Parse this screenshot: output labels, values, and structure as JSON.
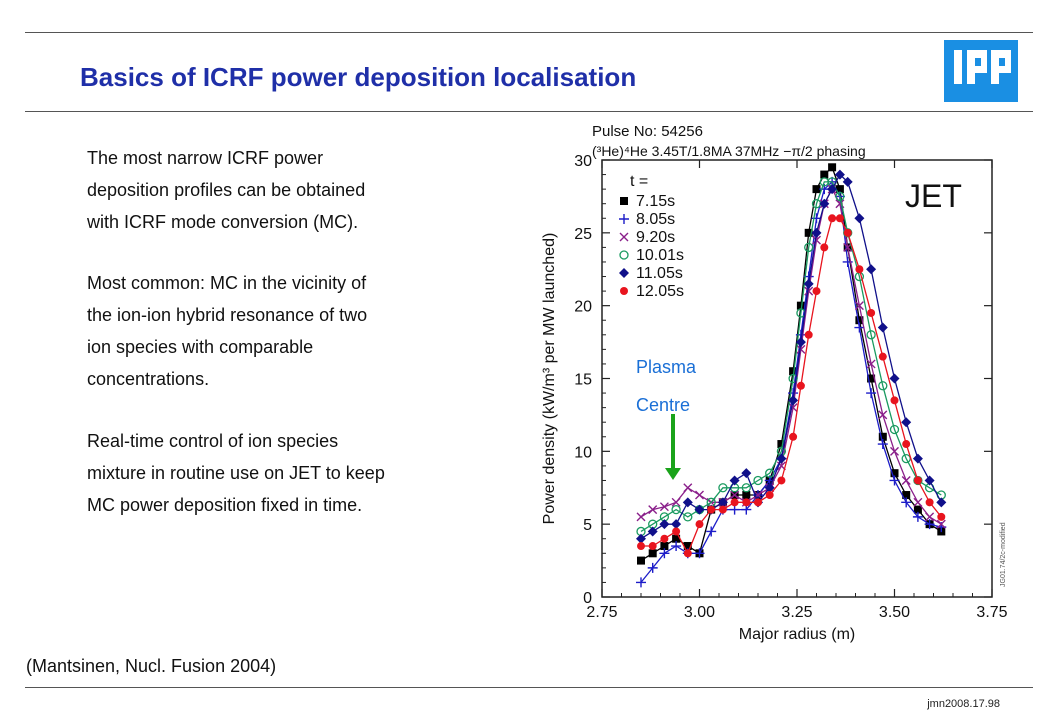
{
  "slide": {
    "title": "Basics of ICRF power deposition localisation",
    "title_color": "#1f2fa8",
    "logo_text": "IPP",
    "logo_color": "#1a8fe3",
    "paragraphs": [
      [
        "The most narrow ICRF power",
        "deposition profiles can be obtained",
        "with ICRF mode conversion (MC)."
      ],
      [
        "Most common: MC in the vicinity of",
        "the ion-ion hybrid resonance of two",
        "ion species with comparable",
        "concentrations."
      ],
      [
        "Real-time control of ion species",
        "mixture in routine use on JET to keep",
        "MC power deposition fixed in time."
      ]
    ],
    "citation": "(Mantsinen, Nucl. Fusion 2004)",
    "slide_id": "jmn2008.17.98"
  },
  "annotation": {
    "line1": "Plasma",
    "line2": "Centre",
    "arrow_color": "#1aa31a",
    "text_color": "#1a6fd6"
  },
  "chart_data": {
    "type": "scatter",
    "header_line1": "Pulse No: 54256",
    "header_line2": "(³He)⁴He 3.45T/1.8MA     37MHz   −π/2 phasing",
    "corner_label": "JET",
    "xlabel": "Major radius (m)",
    "ylabel": "Power density (kW/m³ per MW launched)",
    "xlim": [
      2.75,
      3.75
    ],
    "ylim": [
      0,
      30
    ],
    "xticks": [
      "2.75",
      "3.00",
      "3.25",
      "3.50",
      "3.75"
    ],
    "yticks": [
      "0",
      "5",
      "10",
      "15",
      "20",
      "25",
      "30"
    ],
    "legend_title": "t =",
    "legend_position": "top-left",
    "side_note": "JG01.74/2c-modified",
    "series": [
      {
        "name": "7.15s",
        "marker": "square",
        "color": "#000000",
        "x": [
          2.85,
          2.88,
          2.91,
          2.94,
          2.97,
          3.0,
          3.03,
          3.06,
          3.09,
          3.12,
          3.15,
          3.18,
          3.21,
          3.24,
          3.26,
          3.28,
          3.3,
          3.32,
          3.34,
          3.36,
          3.38,
          3.41,
          3.44,
          3.47,
          3.5,
          3.53,
          3.56,
          3.59,
          3.62
        ],
        "y": [
          2.5,
          3.0,
          3.5,
          4.0,
          3.5,
          3.0,
          6.0,
          6.5,
          7.0,
          7.0,
          7.0,
          8.0,
          10.5,
          15.5,
          20.0,
          25.0,
          28.0,
          29.0,
          29.5,
          28.0,
          24.0,
          19.0,
          15.0,
          11.0,
          8.5,
          7.0,
          6.0,
          5.0,
          4.5
        ]
      },
      {
        "name": "8.05s",
        "marker": "plus",
        "color": "#1c1cc8",
        "x": [
          2.85,
          2.88,
          2.91,
          2.94,
          2.97,
          3.0,
          3.03,
          3.06,
          3.09,
          3.12,
          3.15,
          3.18,
          3.21,
          3.24,
          3.26,
          3.28,
          3.3,
          3.32,
          3.34,
          3.36,
          3.38,
          3.41,
          3.44,
          3.47,
          3.5,
          3.53,
          3.56,
          3.59,
          3.62
        ],
        "y": [
          1.0,
          2.0,
          3.0,
          3.5,
          3.0,
          3.0,
          4.5,
          6.0,
          6.0,
          6.0,
          7.0,
          8.0,
          9.5,
          14.0,
          18.0,
          22.0,
          26.0,
          28.0,
          28.5,
          27.5,
          23.0,
          18.5,
          14.0,
          10.5,
          8.0,
          6.5,
          5.5,
          5.0,
          4.8
        ]
      },
      {
        "name": "9.20s",
        "marker": "x",
        "color": "#8a1f8a",
        "x": [
          2.85,
          2.88,
          2.91,
          2.94,
          2.97,
          3.0,
          3.03,
          3.06,
          3.09,
          3.12,
          3.15,
          3.18,
          3.21,
          3.24,
          3.26,
          3.28,
          3.3,
          3.32,
          3.34,
          3.36,
          3.38,
          3.41,
          3.44,
          3.47,
          3.5,
          3.53,
          3.56,
          3.59,
          3.62
        ],
        "y": [
          5.5,
          6.0,
          6.2,
          6.5,
          7.5,
          7.0,
          6.5,
          6.5,
          7.0,
          6.5,
          7.0,
          7.5,
          9.0,
          13.0,
          17.0,
          21.0,
          24.5,
          27.0,
          28.0,
          27.0,
          24.0,
          20.0,
          16.0,
          12.5,
          10.0,
          8.0,
          6.5,
          5.5,
          5.0
        ]
      },
      {
        "name": "10.01s",
        "marker": "circle",
        "color": "#1a9a60",
        "x": [
          2.85,
          2.88,
          2.91,
          2.94,
          2.97,
          3.0,
          3.03,
          3.06,
          3.09,
          3.12,
          3.15,
          3.18,
          3.21,
          3.24,
          3.26,
          3.28,
          3.3,
          3.32,
          3.34,
          3.36,
          3.38,
          3.41,
          3.44,
          3.47,
          3.5,
          3.53,
          3.56,
          3.59,
          3.62
        ],
        "y": [
          4.5,
          5.0,
          5.5,
          6.0,
          5.5,
          6.0,
          6.5,
          7.5,
          7.5,
          7.5,
          8.0,
          8.5,
          10.0,
          15.0,
          19.5,
          24.0,
          27.0,
          28.5,
          28.5,
          27.5,
          25.0,
          22.0,
          18.0,
          14.5,
          11.5,
          9.5,
          8.0,
          7.5,
          7.0
        ]
      },
      {
        "name": "11.05s",
        "marker": "diamond",
        "color": "#10108a",
        "x": [
          2.85,
          2.88,
          2.91,
          2.94,
          2.97,
          3.0,
          3.03,
          3.06,
          3.09,
          3.12,
          3.15,
          3.18,
          3.21,
          3.24,
          3.26,
          3.28,
          3.3,
          3.32,
          3.34,
          3.36,
          3.38,
          3.41,
          3.44,
          3.47,
          3.5,
          3.53,
          3.56,
          3.59,
          3.62
        ],
        "y": [
          4.0,
          4.5,
          5.0,
          5.0,
          6.5,
          6.0,
          6.0,
          6.5,
          8.0,
          8.5,
          6.5,
          7.5,
          9.5,
          13.5,
          17.5,
          21.5,
          25.0,
          27.0,
          28.0,
          29.0,
          28.5,
          26.0,
          22.5,
          18.5,
          15.0,
          12.0,
          9.5,
          8.0,
          6.5
        ]
      },
      {
        "name": "12.05s",
        "marker": "dot",
        "color": "#e8141e",
        "x": [
          2.85,
          2.88,
          2.91,
          2.94,
          2.97,
          3.0,
          3.03,
          3.06,
          3.09,
          3.12,
          3.15,
          3.18,
          3.21,
          3.24,
          3.26,
          3.28,
          3.3,
          3.32,
          3.34,
          3.36,
          3.38,
          3.41,
          3.44,
          3.47,
          3.5,
          3.53,
          3.56,
          3.59,
          3.62
        ],
        "y": [
          3.5,
          3.5,
          4.0,
          4.5,
          3.0,
          5.0,
          6.0,
          6.0,
          6.5,
          6.5,
          6.5,
          7.0,
          8.0,
          11.0,
          14.5,
          18.0,
          21.0,
          24.0,
          26.0,
          26.0,
          25.0,
          22.5,
          19.5,
          16.5,
          13.5,
          10.5,
          8.0,
          6.5,
          5.5
        ]
      }
    ]
  }
}
